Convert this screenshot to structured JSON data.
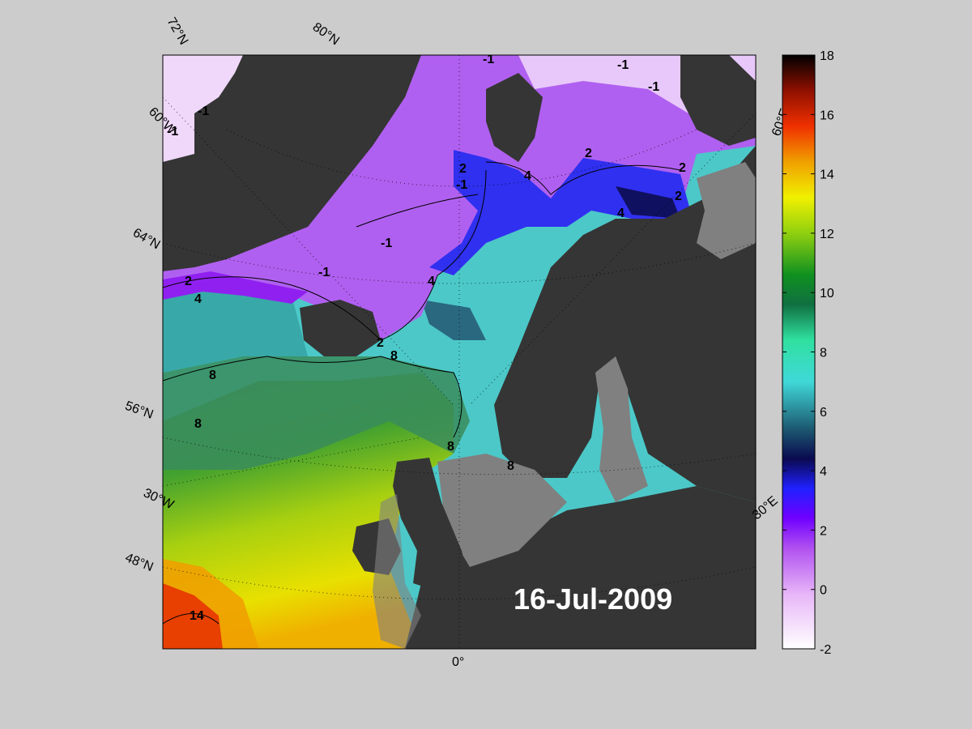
{
  "date_label": "16-Jul-2009",
  "colorbar": {
    "ticks": [
      "18",
      "16",
      "14",
      "12",
      "10",
      "8",
      "6",
      "4",
      "2",
      "0",
      "-2"
    ],
    "min": -2,
    "max": 18
  },
  "graticule_labels": {
    "lat_72": "72°N",
    "lat_80": "80°N",
    "lat_64": "64°N",
    "lat_56": "56°N",
    "lat_48": "48°N",
    "lon_60w": "60°W",
    "lon_30w": "30°W",
    "lon_0": "0°",
    "lon_30e": "30°E",
    "lon_60e": "60°E"
  },
  "contour_labels": {
    "c1": "-1",
    "c2": "-1",
    "c3": "-1",
    "c4": "-1",
    "c5": "-1",
    "c6": "-1",
    "c7": "-1",
    "c8": "-1",
    "c9": "2",
    "c10": "2",
    "c11": "2",
    "c12": "2",
    "c13": "2",
    "c14": "2",
    "c15": "4",
    "c16": "4",
    "c17": "4",
    "c18": "4",
    "c19": "8",
    "c20": "8",
    "c21": "8",
    "c22": "8",
    "c23": "8",
    "c24": "14"
  },
  "colors": {
    "land": "#353535",
    "no_data": "#808080",
    "background": "#cccccc"
  }
}
